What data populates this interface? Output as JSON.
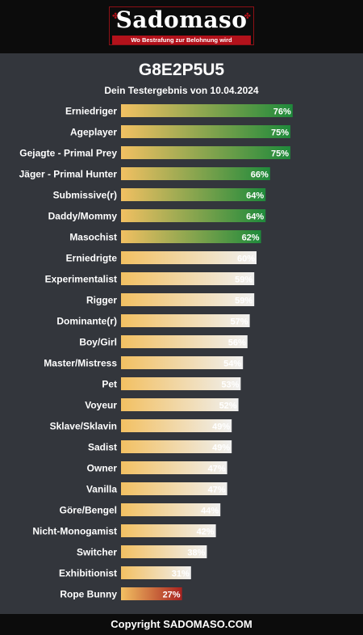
{
  "logo": {
    "word": "Sadomaso",
    "tagline": "Wo Bestrafung zur Belohnung wird"
  },
  "title": "G8E2P5U5",
  "subtitle": "Dein Testergebnis von 10.04.2024",
  "footer": "Copyright SADOMASO.COM",
  "colors": {
    "background": "#33363c",
    "bar_start": "#f2c062",
    "high_end": "#1f8a3b",
    "mid_end": "#f0f0f0",
    "low_end": "#a9221f"
  },
  "chart_data": {
    "type": "bar",
    "orientation": "horizontal",
    "value_suffix": "%",
    "xlim": [
      0,
      100
    ],
    "categories": [
      "Erniedriger",
      "Ageplayer",
      "Gejagte - Primal Prey",
      "Jäger - Primal Hunter",
      "Submissive(r)",
      "Daddy/Mommy",
      "Masochist",
      "Erniedrigte",
      "Experimentalist",
      "Rigger",
      "Dominante(r)",
      "Boy/Girl",
      "Master/Mistress",
      "Pet",
      "Voyeur",
      "Sklave/Sklavin",
      "Sadist",
      "Owner",
      "Vanilla",
      "Göre/Bengel",
      "Nicht-Monogamist",
      "Switcher",
      "Exhibitionist",
      "Rope Bunny"
    ],
    "values": [
      76,
      75,
      75,
      66,
      64,
      64,
      62,
      60,
      59,
      59,
      57,
      56,
      54,
      53,
      52,
      49,
      49,
      47,
      47,
      44,
      42,
      38,
      31,
      27
    ],
    "labels": [
      "76%",
      "75%",
      "75%",
      "66%",
      "64%",
      "64%",
      "62%",
      "60%",
      "59%",
      "59%",
      "57%",
      "56%",
      "54%",
      "53%",
      "52%",
      "49%",
      "49%",
      "47%",
      "47%",
      "44%",
      "42%",
      "38%",
      "31%",
      "27%"
    ],
    "tiers": [
      "high",
      "high",
      "high",
      "high",
      "high",
      "high",
      "high",
      "mid",
      "mid",
      "mid",
      "mid",
      "mid",
      "mid",
      "mid",
      "mid",
      "mid",
      "mid",
      "mid",
      "mid",
      "mid",
      "mid",
      "mid",
      "mid",
      "low"
    ]
  }
}
